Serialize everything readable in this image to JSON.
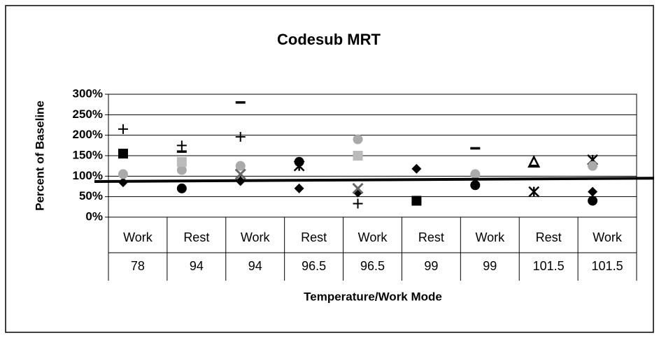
{
  "chart_data": {
    "type": "scatter",
    "title": "Codesub MRT",
    "y_label": "Percent of Baseline",
    "x_label": "Temperature/Work Mode",
    "categories": [
      [
        "Work",
        "78"
      ],
      [
        "Rest",
        "94"
      ],
      [
        "Work",
        "94"
      ],
      [
        "Rest",
        "96.5"
      ],
      [
        "Work",
        "96.5"
      ],
      [
        "Rest",
        "99"
      ],
      [
        "Work",
        "99"
      ],
      [
        "Rest",
        "101.5"
      ],
      [
        "Work",
        "101.5"
      ]
    ],
    "ylim": [
      0,
      300
    ],
    "yticks": [
      {
        "value": 0,
        "label": "0%"
      },
      {
        "value": 50,
        "label": "50%"
      },
      {
        "value": 100,
        "label": "100%"
      },
      {
        "value": 150,
        "label": "150%"
      },
      {
        "value": 200,
        "label": "200%"
      },
      {
        "value": 250,
        "label": "250%"
      },
      {
        "value": 300,
        "label": "300%"
      }
    ],
    "grid": true,
    "reference_line": {
      "color": "#000",
      "values": [
        87,
        95
      ]
    },
    "series": [
      {
        "marker": "diamond",
        "color": "#000",
        "values": [
          85,
          null,
          88,
          70,
          60,
          118,
          null,
          null,
          62
        ]
      },
      {
        "marker": "square",
        "color": "#000",
        "values": [
          155,
          null,
          null,
          null,
          null,
          40,
          null,
          null,
          null
        ]
      },
      {
        "marker": "circle",
        "color": "#000",
        "values": [
          null,
          70,
          null,
          135,
          null,
          null,
          78,
          null,
          40
        ]
      },
      {
        "marker": "plus",
        "color": "#000",
        "values": [
          215,
          175,
          196,
          null,
          33,
          null,
          null,
          null,
          null
        ]
      },
      {
        "marker": "dash",
        "color": "#000",
        "values": [
          null,
          160,
          280,
          null,
          null,
          null,
          168,
          125,
          null
        ]
      },
      {
        "marker": "asterisk",
        "color": "#000",
        "values": [
          null,
          null,
          null,
          125,
          null,
          null,
          null,
          62,
          140
        ]
      },
      {
        "marker": "x",
        "color": "#666",
        "values": [
          null,
          null,
          105,
          null,
          70,
          null,
          null,
          null,
          null
        ]
      },
      {
        "marker": "triangle",
        "color": "#000",
        "values": [
          null,
          null,
          null,
          null,
          null,
          null,
          null,
          135,
          null
        ]
      },
      {
        "marker": "circle",
        "color": "#aaa",
        "values": [
          105,
          115,
          125,
          null,
          190,
          null,
          105,
          null,
          125
        ]
      },
      {
        "marker": "square",
        "color": "#bbb",
        "values": [
          null,
          135,
          null,
          null,
          150,
          null,
          null,
          null,
          null
        ]
      }
    ]
  }
}
